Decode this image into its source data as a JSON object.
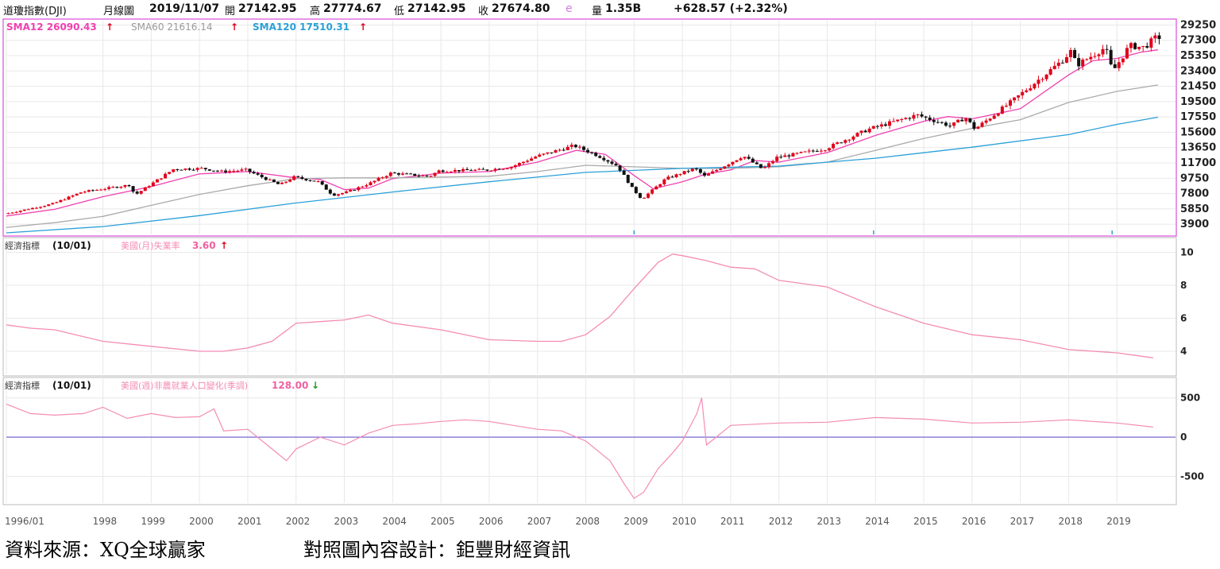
{
  "header": {
    "symbol": "道瓊指數(DJI)",
    "period": "月線圖",
    "date": "2019/11/07",
    "open_label": "開",
    "open": "27142.95",
    "high_label": "高",
    "high": "27774.67",
    "low_label": "低",
    "low": "27142.95",
    "close_label": "收",
    "close": "27674.80",
    "estimate_flag": "e",
    "volume_label": "量",
    "volume": "1.35B",
    "change": "+628.57 (+2.32%)"
  },
  "colors": {
    "up": "#e0001a",
    "down": "#111111",
    "sma12": "#f040b0",
    "sma60": "#aaaaaa",
    "sma120": "#2aa0d8",
    "indicator_line": "#f48cb4",
    "zero_line": "#6a5acd",
    "frame_main": "#e070e0",
    "grid": "#e8e8e8"
  },
  "legend": {
    "sma12": "SMA12 26090.43",
    "sma60": "SMA60 21616.14",
    "sma120": "SMA120 17510.31",
    "arrow_up": "🠕"
  },
  "panel2": {
    "tag": "經濟指標",
    "date": "(10/01)",
    "name": "美國(月)失業率",
    "value": "3.60"
  },
  "panel3": {
    "tag": "經濟指標",
    "date": "(10/01)",
    "name": "美國(週)非農就業人口變化(季調)",
    "value": "128.00"
  },
  "footer": {
    "source": "資料來源：XQ全球贏家",
    "design": "對照圖內容設計：鉅豐財經資訊"
  },
  "chart_data": [
    {
      "type": "candlestick",
      "title": "道瓊指數(DJI) 月線圖",
      "y_ticks": [
        29250,
        27300,
        25350,
        23400,
        21450,
        19500,
        17550,
        15600,
        13650,
        11700,
        9750,
        7800,
        5850,
        3900
      ],
      "ylim": [
        2600,
        29800
      ],
      "x_ticks": [
        "1996/01",
        "1998",
        "1999",
        "2000",
        "2001",
        "2002",
        "2003",
        "2004",
        "2005",
        "2006",
        "2007",
        "2008",
        "2009",
        "2010",
        "2011",
        "2012",
        "2013",
        "2014",
        "2015",
        "2016",
        "2017",
        "2018",
        "2019"
      ],
      "xlim": [
        1996.0,
        2019.95
      ],
      "close_anchors": [
        [
          1996.0,
          5200
        ],
        [
          1997.0,
          6500
        ],
        [
          1997.6,
          8000
        ],
        [
          1998.6,
          8900
        ],
        [
          1998.7,
          7600
        ],
        [
          1999.5,
          10900
        ],
        [
          2000.1,
          11000
        ],
        [
          2000.5,
          10600
        ],
        [
          2001.0,
          10800
        ],
        [
          2001.7,
          8900
        ],
        [
          2002.0,
          9900
        ],
        [
          2002.5,
          9300
        ],
        [
          2002.8,
          7600
        ],
        [
          2003.1,
          8000
        ],
        [
          2003.6,
          9200
        ],
        [
          2004.0,
          10400
        ],
        [
          2004.8,
          10000
        ],
        [
          2005.0,
          10700
        ],
        [
          2006.0,
          10800
        ],
        [
          2006.5,
          11200
        ],
        [
          2007.0,
          12500
        ],
        [
          2007.8,
          13900
        ],
        [
          2008.3,
          12600
        ],
        [
          2008.7,
          11300
        ],
        [
          2009.0,
          8500
        ],
        [
          2009.2,
          7100
        ],
        [
          2009.7,
          9700
        ],
        [
          2010.3,
          11000
        ],
        [
          2010.5,
          10000
        ],
        [
          2011.3,
          12600
        ],
        [
          2011.7,
          10900
        ],
        [
          2012.0,
          12400
        ],
        [
          2013.0,
          13500
        ],
        [
          2013.9,
          16000
        ],
        [
          2014.9,
          17800
        ],
        [
          2015.6,
          16400
        ],
        [
          2015.9,
          17500
        ],
        [
          2016.1,
          16000
        ],
        [
          2016.9,
          19700
        ],
        [
          2017.9,
          24700
        ],
        [
          2018.1,
          26000
        ],
        [
          2018.2,
          24100
        ],
        [
          2018.8,
          26400
        ],
        [
          2018.95,
          23300
        ],
        [
          2019.3,
          26600
        ],
        [
          2019.6,
          26400
        ],
        [
          2019.85,
          27675
        ]
      ],
      "series": [
        {
          "name": "SMA12",
          "points": [
            [
              1996.0,
              4950
            ],
            [
              1997.0,
              5800
            ],
            [
              1998.0,
              7400
            ],
            [
              1999.0,
              8700
            ],
            [
              2000.0,
              10300
            ],
            [
              2001.0,
              10600
            ],
            [
              2002.0,
              9800
            ],
            [
              2002.5,
              9600
            ],
            [
              2003.0,
              8300
            ],
            [
              2003.5,
              8500
            ],
            [
              2004.0,
              9700
            ],
            [
              2005.0,
              10400
            ],
            [
              2006.0,
              10600
            ],
            [
              2007.0,
              11800
            ],
            [
              2007.8,
              13300
            ],
            [
              2008.4,
              12800
            ],
            [
              2009.0,
              10100
            ],
            [
              2009.4,
              8400
            ],
            [
              2010.0,
              9300
            ],
            [
              2010.5,
              10300
            ],
            [
              2011.0,
              10800
            ],
            [
              2011.5,
              12000
            ],
            [
              2012.0,
              11800
            ],
            [
              2013.0,
              13000
            ],
            [
              2014.0,
              15200
            ],
            [
              2015.0,
              17000
            ],
            [
              2015.5,
              17600
            ],
            [
              2016.0,
              17300
            ],
            [
              2017.0,
              18600
            ],
            [
              2018.0,
              22900
            ],
            [
              2018.5,
              24700
            ],
            [
              2019.0,
              25000
            ],
            [
              2019.5,
              25800
            ],
            [
              2019.85,
              26090
            ]
          ]
        },
        {
          "name": "SMA60",
          "points": [
            [
              1996.0,
              3500
            ],
            [
              1997.0,
              4100
            ],
            [
              1998.0,
              4900
            ],
            [
              1999.0,
              6300
            ],
            [
              2000.0,
              7700
            ],
            [
              2001.0,
              8800
            ],
            [
              2002.0,
              9700
            ],
            [
              2003.0,
              9800
            ],
            [
              2004.0,
              9800
            ],
            [
              2005.0,
              9900
            ],
            [
              2006.0,
              10000
            ],
            [
              2007.0,
              10600
            ],
            [
              2008.0,
              11400
            ],
            [
              2009.0,
              11200
            ],
            [
              2010.0,
              11000
            ],
            [
              2011.0,
              11000
            ],
            [
              2012.0,
              11200
            ],
            [
              2013.0,
              11800
            ],
            [
              2014.0,
              13300
            ],
            [
              2015.0,
              14800
            ],
            [
              2016.0,
              16100
            ],
            [
              2017.0,
              17200
            ],
            [
              2018.0,
              19400
            ],
            [
              2019.0,
              20800
            ],
            [
              2019.85,
              21616
            ]
          ]
        },
        {
          "name": "SMA120",
          "points": [
            [
              1996.0,
              2800
            ],
            [
              1998.0,
              3600
            ],
            [
              2000.0,
              5000
            ],
            [
              2002.0,
              6600
            ],
            [
              2004.0,
              8000
            ],
            [
              2006.0,
              9300
            ],
            [
              2008.0,
              10500
            ],
            [
              2010.0,
              11000
            ],
            [
              2012.0,
              11300
            ],
            [
              2014.0,
              12300
            ],
            [
              2016.0,
              13700
            ],
            [
              2018.0,
              15300
            ],
            [
              2019.0,
              16600
            ],
            [
              2019.85,
              17510
            ]
          ]
        }
      ]
    },
    {
      "type": "line",
      "series_name": "美國(月)失業率",
      "y_ticks": [
        10,
        8,
        6,
        4
      ],
      "ylim": [
        2.6,
        10.8
      ],
      "x": [
        1996.0,
        1996.5,
        1997.0,
        1998.0,
        1999.0,
        2000.0,
        2000.5,
        2001.0,
        2001.5,
        2002.0,
        2002.5,
        2003.0,
        2003.5,
        2004.0,
        2005.0,
        2006.0,
        2007.0,
        2007.5,
        2008.0,
        2008.5,
        2009.0,
        2009.5,
        2009.8,
        2010.0,
        2010.5,
        2011.0,
        2011.5,
        2012.0,
        2013.0,
        2014.0,
        2015.0,
        2016.0,
        2017.0,
        2018.0,
        2019.0,
        2019.5,
        2019.75
      ],
      "values": [
        5.6,
        5.4,
        5.3,
        4.6,
        4.3,
        4.0,
        4.0,
        4.2,
        4.6,
        5.7,
        5.8,
        5.9,
        6.2,
        5.7,
        5.3,
        4.7,
        4.6,
        4.6,
        5.0,
        6.1,
        7.8,
        9.4,
        9.9,
        9.8,
        9.5,
        9.1,
        9.0,
        8.3,
        7.9,
        6.7,
        5.7,
        5.0,
        4.7,
        4.1,
        3.9,
        3.7,
        3.6
      ]
    },
    {
      "type": "line",
      "series_name": "美國(週)非農就業人口變化(季調)",
      "y_ticks": [
        500,
        0,
        -500
      ],
      "ylim": [
        -840,
        740
      ],
      "x": [
        1996.0,
        1996.5,
        1997.0,
        1997.6,
        1998.0,
        1998.5,
        1999.0,
        1999.5,
        2000.0,
        2000.3,
        2000.5,
        2001.0,
        2001.5,
        2001.8,
        2002.0,
        2002.5,
        2003.0,
        2003.5,
        2004.0,
        2004.5,
        2005.0,
        2005.5,
        2006.0,
        2006.5,
        2007.0,
        2007.5,
        2008.0,
        2008.5,
        2008.8,
        2009.0,
        2009.2,
        2009.5,
        2009.8,
        2010.0,
        2010.3,
        2010.4,
        2010.5,
        2011.0,
        2012.0,
        2013.0,
        2014.0,
        2015.0,
        2016.0,
        2017.0,
        2018.0,
        2019.0,
        2019.75
      ],
      "values": [
        420,
        300,
        280,
        300,
        380,
        240,
        300,
        250,
        260,
        360,
        80,
        100,
        -150,
        -300,
        -150,
        0,
        -100,
        50,
        150,
        170,
        200,
        220,
        200,
        150,
        100,
        80,
        -50,
        -300,
        -600,
        -780,
        -700,
        -400,
        -200,
        -50,
        300,
        500,
        -100,
        150,
        180,
        190,
        250,
        230,
        180,
        190,
        220,
        180,
        128
      ]
    }
  ]
}
